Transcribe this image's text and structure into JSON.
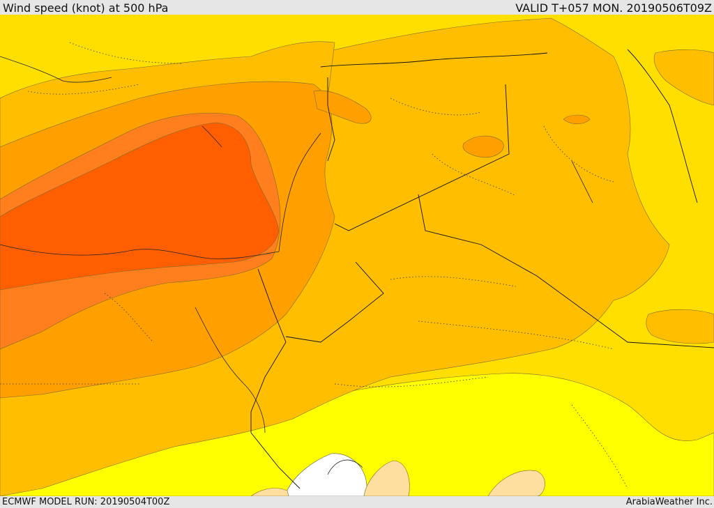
{
  "header": {
    "title": "Wind speed (knot) at 500 hPa",
    "valid": "VALID T+057 MON. 20190506T09Z"
  },
  "footer": {
    "model_run": "ECMWF MODEL RUN: 20190504T00Z",
    "credit": "ArabiaWeather Inc."
  },
  "colors": {
    "band_lowest": "#ffffff",
    "band_low": "#ffdfa0",
    "band_mid_low": "#ffff00",
    "band_mid": "#ffdf00",
    "band_mid_high": "#ffbf00",
    "band_high": "#ff9f00",
    "band_higher": "#ff7f1f",
    "band_max": "#ff5f00",
    "background": "#e6e6e6"
  }
}
